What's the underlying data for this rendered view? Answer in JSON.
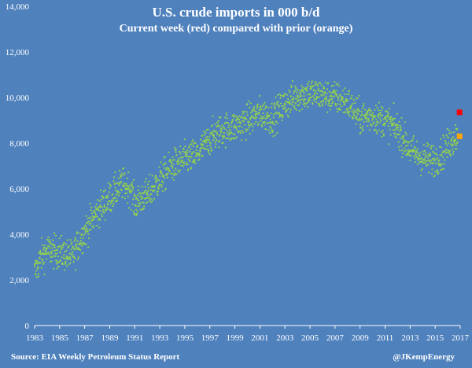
{
  "chart_data": {
    "type": "scatter",
    "title": "U.S. crude imports in 000 b/d",
    "subtitle": "Current week (red) compared with prior (orange)",
    "xlabel": "",
    "ylabel": "",
    "xlim": [
      1983,
      2017
    ],
    "ylim": [
      0,
      14000
    ],
    "x_ticks": [
      "1983",
      "1985",
      "1987",
      "1989",
      "1991",
      "1993",
      "1995",
      "1997",
      "1999",
      "2001",
      "2003",
      "2005",
      "2007",
      "2009",
      "2011",
      "2013",
      "2015",
      "2017"
    ],
    "y_ticks": [
      "0",
      "2,000",
      "4,000",
      "6,000",
      "8,000",
      "10,000",
      "12,000",
      "14,000"
    ],
    "grid": false,
    "legend": "none",
    "colors": {
      "background": "#4f81bd",
      "series": "#92d050",
      "current": "#ff0000",
      "prior": "#ffa500",
      "text": "#ffffff"
    },
    "trend": [
      [
        1983.0,
        2300
      ],
      [
        1983.5,
        3000
      ],
      [
        1984.0,
        3300
      ],
      [
        1985.0,
        3200
      ],
      [
        1986.0,
        3000
      ],
      [
        1986.6,
        3700
      ],
      [
        1987.0,
        4100
      ],
      [
        1988.0,
        5000
      ],
      [
        1989.0,
        5600
      ],
      [
        1990.0,
        6200
      ],
      [
        1990.7,
        6000
      ],
      [
        1991.0,
        5300
      ],
      [
        1991.5,
        5600
      ],
      [
        1992.0,
        5700
      ],
      [
        1993.0,
        6400
      ],
      [
        1994.0,
        7000
      ],
      [
        1995.0,
        7300
      ],
      [
        1996.0,
        7500
      ],
      [
        1997.0,
        8200
      ],
      [
        1998.0,
        8600
      ],
      [
        1999.0,
        8700
      ],
      [
        2000.0,
        9000
      ],
      [
        2001.0,
        9300
      ],
      [
        2002.0,
        9100
      ],
      [
        2003.0,
        9700
      ],
      [
        2004.0,
        10100
      ],
      [
        2005.0,
        10200
      ],
      [
        2006.0,
        10100
      ],
      [
        2007.0,
        10000
      ],
      [
        2008.0,
        9800
      ],
      [
        2009.0,
        9100
      ],
      [
        2010.0,
        9200
      ],
      [
        2011.0,
        9000
      ],
      [
        2012.0,
        8600
      ],
      [
        2013.0,
        7700
      ],
      [
        2014.0,
        7300
      ],
      [
        2015.0,
        7300
      ],
      [
        2015.5,
        7500
      ],
      [
        2016.0,
        7900
      ],
      [
        2016.8,
        8400
      ]
    ],
    "spread": 650,
    "point_count": 1720,
    "current_week": {
      "x": 2016.95,
      "y": 9350
    },
    "prior_week": {
      "x": 2016.95,
      "y": 8300
    }
  },
  "footer": {
    "source": "Source: EIA Weekly Petroleum Status Report",
    "credit": "@JKempEnergy"
  }
}
